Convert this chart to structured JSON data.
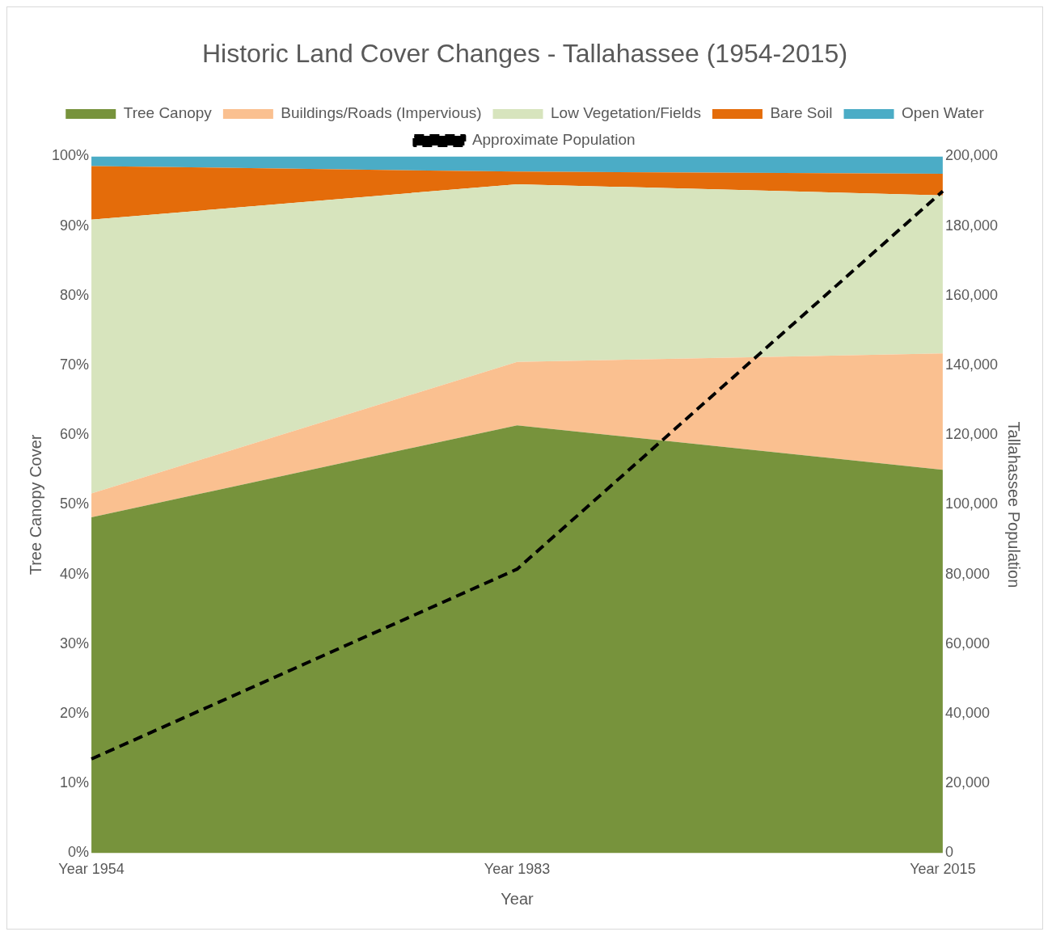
{
  "chart_data": {
    "type": "area",
    "title": "Historic Land Cover Changes - Tallahassee (1954-2015)",
    "xlabel": "Year",
    "ylabel": "Tree Canopy Cover",
    "y2label": "Tallahassee Population",
    "categories": [
      "Year 1954",
      "Year 1983",
      "Year 2015"
    ],
    "stacked": true,
    "series": [
      {
        "name": "Tree Canopy",
        "color": "#77933c",
        "values": [
          48.2,
          61.4,
          55.0
        ]
      },
      {
        "name": "Buildings/Roads (Impervious)",
        "color": "#fac090",
        "values": [
          3.4,
          9.1,
          16.7
        ]
      },
      {
        "name": "Low Vegetation/Fields",
        "color": "#d7e4bd",
        "values": [
          39.3,
          25.5,
          22.7
        ]
      },
      {
        "name": "Bare Soil",
        "color": "#e46c0a",
        "values": [
          7.7,
          1.8,
          3.1
        ]
      },
      {
        "name": "Open Water",
        "color": "#4bacc6",
        "values": [
          1.4,
          2.2,
          2.5
        ]
      },
      {
        "name": "Approximate Population",
        "type": "line",
        "axis": "y2",
        "color": "#000000",
        "line_style": "dashed",
        "marker": "none",
        "values": [
          27000,
          81500,
          190000
        ]
      }
    ],
    "ylim": [
      0,
      100
    ],
    "yticks": [
      {
        "value": 0,
        "label": "0%"
      },
      {
        "value": 10,
        "label": "10%"
      },
      {
        "value": 20,
        "label": "20%"
      },
      {
        "value": 30,
        "label": "30%"
      },
      {
        "value": 40,
        "label": "40%"
      },
      {
        "value": 50,
        "label": "50%"
      },
      {
        "value": 60,
        "label": "60%"
      },
      {
        "value": 70,
        "label": "70%"
      },
      {
        "value": 80,
        "label": "80%"
      },
      {
        "value": 90,
        "label": "90%"
      },
      {
        "value": 100,
        "label": "100%"
      }
    ],
    "y2lim": [
      0,
      200000
    ],
    "y2ticks": [
      0,
      {
        "value": 20000,
        "label": "20,000"
      },
      {
        "value": 40000,
        "label": "40,000"
      },
      {
        "value": 60000,
        "label": "60,000"
      },
      {
        "value": 80000,
        "label": "80,000"
      },
      {
        "value": 100000,
        "label": "100,000"
      },
      {
        "value": 120000,
        "label": "120,000"
      },
      {
        "value": 140000,
        "label": "140,000"
      },
      {
        "value": 160000,
        "label": "160,000"
      },
      {
        "value": 180000,
        "label": "180,000"
      },
      {
        "value": 200000,
        "label": "200,000"
      }
    ],
    "grid": false,
    "legend": "top"
  }
}
